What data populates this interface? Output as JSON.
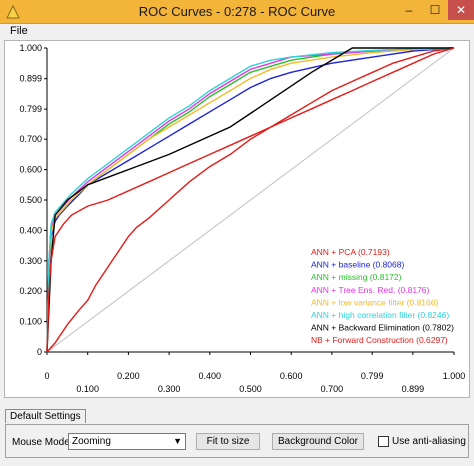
{
  "window": {
    "title": "ROC Curves - 0:278 - ROC Curve",
    "minimize": "–",
    "maximize": "☐",
    "close": "✕"
  },
  "menu": {
    "file": "File"
  },
  "tabs": [
    "Default Settings"
  ],
  "controls": {
    "mouse_mode_label": "Mouse Mode",
    "mouse_mode_value": "Zooming",
    "fit_button": "Fit to size",
    "background_button": "Background Color",
    "antialias_label": "Use anti-aliasing",
    "antialias_checked": false
  },
  "chart_data": {
    "type": "line",
    "title": "",
    "xlabel": "",
    "ylabel": "",
    "xlim": [
      0,
      1
    ],
    "ylim": [
      0,
      1
    ],
    "x_tick_labels": [
      "0",
      "0.100",
      "0.200",
      "0.300",
      "0.400",
      "0.500",
      "0.600",
      "0.700",
      "0.799",
      "0.899",
      "1.000"
    ],
    "x_tick_values": [
      0,
      0.1,
      0.2,
      0.3,
      0.4,
      0.5,
      0.6,
      0.7,
      0.799,
      0.899,
      1.0
    ],
    "y_tick_labels": [
      "0",
      "0.100",
      "0.200",
      "0.300",
      "0.400",
      "0.500",
      "0.600",
      "0.700",
      "0.799",
      "0.899",
      "1.000"
    ],
    "y_tick_values": [
      0,
      0.1,
      0.2,
      0.3,
      0.4,
      0.5,
      0.6,
      0.7,
      0.799,
      0.899,
      1.0
    ],
    "legend_position": "bottom-right",
    "diagonal": {
      "color": "#c0c0c0",
      "points": [
        [
          0,
          0
        ],
        [
          1,
          1
        ]
      ]
    },
    "series": [
      {
        "name": "ANN + PCA (0.7193)",
        "color": "#e41b17",
        "points": [
          [
            0,
            0
          ],
          [
            0.02,
            0.03
          ],
          [
            0.05,
            0.09
          ],
          [
            0.08,
            0.14
          ],
          [
            0.1,
            0.17
          ],
          [
            0.12,
            0.22
          ],
          [
            0.15,
            0.28
          ],
          [
            0.18,
            0.34
          ],
          [
            0.2,
            0.38
          ],
          [
            0.22,
            0.41
          ],
          [
            0.25,
            0.44
          ],
          [
            0.3,
            0.5
          ],
          [
            0.35,
            0.56
          ],
          [
            0.4,
            0.61
          ],
          [
            0.45,
            0.65
          ],
          [
            0.5,
            0.7
          ],
          [
            0.55,
            0.74
          ],
          [
            0.6,
            0.78
          ],
          [
            0.65,
            0.82
          ],
          [
            0.7,
            0.86
          ],
          [
            0.75,
            0.89
          ],
          [
            0.8,
            0.92
          ],
          [
            0.85,
            0.95
          ],
          [
            0.9,
            0.97
          ],
          [
            0.95,
            0.99
          ],
          [
            1,
            1
          ]
        ]
      },
      {
        "name": "ANN + baseline (0.8068)",
        "color": "#1d23d6",
        "points": [
          [
            0,
            0
          ],
          [
            0.005,
            0.25
          ],
          [
            0.01,
            0.38
          ],
          [
            0.02,
            0.43
          ],
          [
            0.03,
            0.45
          ],
          [
            0.05,
            0.48
          ],
          [
            0.08,
            0.52
          ],
          [
            0.1,
            0.55
          ],
          [
            0.15,
            0.59
          ],
          [
            0.2,
            0.63
          ],
          [
            0.25,
            0.67
          ],
          [
            0.3,
            0.71
          ],
          [
            0.35,
            0.75
          ],
          [
            0.4,
            0.79
          ],
          [
            0.45,
            0.83
          ],
          [
            0.5,
            0.87
          ],
          [
            0.55,
            0.9
          ],
          [
            0.6,
            0.92
          ],
          [
            0.7,
            0.95
          ],
          [
            0.8,
            0.97
          ],
          [
            0.9,
            0.99
          ],
          [
            1,
            1
          ]
        ]
      },
      {
        "name": "ANN + missing (0.8172)",
        "color": "#27c32a",
        "points": [
          [
            0,
            0
          ],
          [
            0.005,
            0.3
          ],
          [
            0.01,
            0.4
          ],
          [
            0.02,
            0.44
          ],
          [
            0.04,
            0.47
          ],
          [
            0.06,
            0.5
          ],
          [
            0.1,
            0.55
          ],
          [
            0.15,
            0.6
          ],
          [
            0.2,
            0.65
          ],
          [
            0.25,
            0.7
          ],
          [
            0.3,
            0.75
          ],
          [
            0.35,
            0.79
          ],
          [
            0.4,
            0.84
          ],
          [
            0.45,
            0.88
          ],
          [
            0.5,
            0.92
          ],
          [
            0.55,
            0.94
          ],
          [
            0.6,
            0.96
          ],
          [
            0.7,
            0.98
          ],
          [
            0.8,
            0.99
          ],
          [
            0.9,
            0.995
          ],
          [
            1,
            1
          ]
        ]
      },
      {
        "name": "ANN + Tree Ens. Red. (0.8176)",
        "color": "#e536e5",
        "points": [
          [
            0,
            0
          ],
          [
            0.005,
            0.3
          ],
          [
            0.01,
            0.41
          ],
          [
            0.02,
            0.45
          ],
          [
            0.04,
            0.48
          ],
          [
            0.06,
            0.51
          ],
          [
            0.1,
            0.56
          ],
          [
            0.15,
            0.61
          ],
          [
            0.2,
            0.66
          ],
          [
            0.25,
            0.71
          ],
          [
            0.3,
            0.76
          ],
          [
            0.35,
            0.8
          ],
          [
            0.4,
            0.85
          ],
          [
            0.45,
            0.89
          ],
          [
            0.5,
            0.93
          ],
          [
            0.55,
            0.95
          ],
          [
            0.6,
            0.97
          ],
          [
            0.7,
            0.98
          ],
          [
            0.8,
            0.99
          ],
          [
            0.9,
            0.995
          ],
          [
            1,
            1
          ]
        ]
      },
      {
        "name": "ANN + low variance filter (0.8166)",
        "color": "#f7b92a",
        "points": [
          [
            0,
            0
          ],
          [
            0.005,
            0.28
          ],
          [
            0.01,
            0.39
          ],
          [
            0.02,
            0.44
          ],
          [
            0.04,
            0.47
          ],
          [
            0.06,
            0.5
          ],
          [
            0.1,
            0.55
          ],
          [
            0.15,
            0.6
          ],
          [
            0.2,
            0.65
          ],
          [
            0.25,
            0.7
          ],
          [
            0.3,
            0.74
          ],
          [
            0.35,
            0.78
          ],
          [
            0.4,
            0.82
          ],
          [
            0.45,
            0.86
          ],
          [
            0.5,
            0.9
          ],
          [
            0.55,
            0.93
          ],
          [
            0.6,
            0.95
          ],
          [
            0.7,
            0.97
          ],
          [
            0.8,
            0.985
          ],
          [
            0.9,
            0.995
          ],
          [
            1,
            1
          ]
        ]
      },
      {
        "name": "ANN + high correlation filter (0.8246)",
        "color": "#2ed3d8",
        "points": [
          [
            0,
            0
          ],
          [
            0.005,
            0.3
          ],
          [
            0.01,
            0.42
          ],
          [
            0.02,
            0.46
          ],
          [
            0.04,
            0.49
          ],
          [
            0.06,
            0.52
          ],
          [
            0.1,
            0.57
          ],
          [
            0.15,
            0.62
          ],
          [
            0.2,
            0.67
          ],
          [
            0.25,
            0.72
          ],
          [
            0.3,
            0.77
          ],
          [
            0.35,
            0.81
          ],
          [
            0.4,
            0.86
          ],
          [
            0.45,
            0.9
          ],
          [
            0.5,
            0.94
          ],
          [
            0.55,
            0.96
          ],
          [
            0.6,
            0.97
          ],
          [
            0.7,
            0.985
          ],
          [
            0.8,
            0.992
          ],
          [
            0.9,
            0.997
          ],
          [
            1,
            1
          ]
        ]
      },
      {
        "name": "ANN + Backward Elimination (0.7802)",
        "color": "#000000",
        "points": [
          [
            0,
            0
          ],
          [
            0.01,
            0.3
          ],
          [
            0.02,
            0.45
          ],
          [
            0.05,
            0.5
          ],
          [
            0.1,
            0.55
          ],
          [
            0.2,
            0.6
          ],
          [
            0.3,
            0.65
          ],
          [
            0.45,
            0.74
          ],
          [
            0.55,
            0.83
          ],
          [
            0.65,
            0.92
          ],
          [
            0.75,
            1.0
          ],
          [
            0.85,
            1.0
          ],
          [
            0.95,
            1.0
          ],
          [
            1,
            1
          ]
        ]
      },
      {
        "name": "NB + Forward Construction (0.6297)",
        "color": "#e41b17",
        "points": [
          [
            0,
            0
          ],
          [
            0.005,
            0.2
          ],
          [
            0.01,
            0.3
          ],
          [
            0.02,
            0.38
          ],
          [
            0.04,
            0.42
          ],
          [
            0.06,
            0.45
          ],
          [
            0.1,
            0.48
          ],
          [
            0.15,
            0.5
          ],
          [
            0.2,
            0.53
          ],
          [
            0.25,
            0.56
          ],
          [
            0.3,
            0.59
          ],
          [
            0.35,
            0.62
          ],
          [
            0.4,
            0.65
          ],
          [
            0.45,
            0.68
          ],
          [
            0.5,
            0.71
          ],
          [
            0.55,
            0.74
          ],
          [
            0.6,
            0.77
          ],
          [
            0.65,
            0.8
          ],
          [
            0.7,
            0.83
          ],
          [
            0.75,
            0.86
          ],
          [
            0.8,
            0.89
          ],
          [
            0.85,
            0.92
          ],
          [
            0.9,
            0.95
          ],
          [
            0.95,
            0.98
          ],
          [
            1,
            1
          ]
        ]
      }
    ]
  }
}
